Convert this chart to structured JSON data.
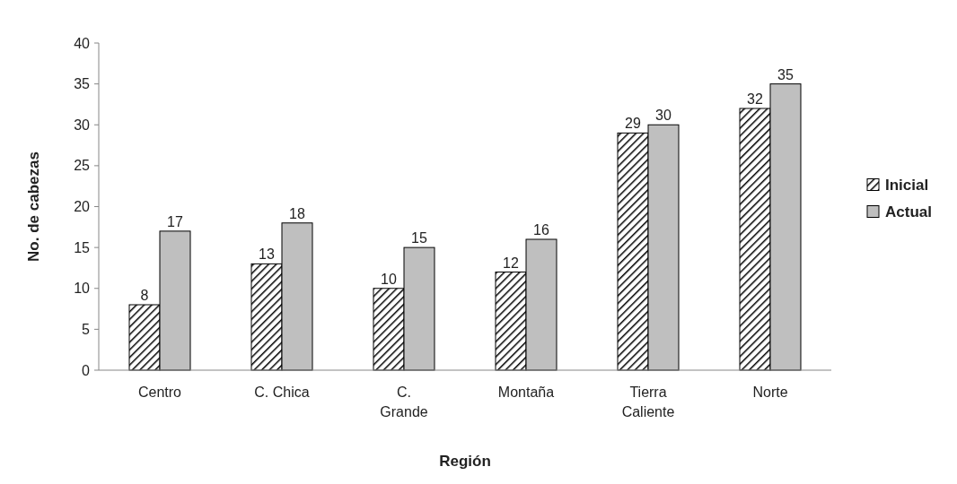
{
  "chart_data": {
    "type": "bar",
    "xlabel": "Región",
    "ylabel": "No. de cabezas",
    "categories": [
      "Centro",
      "C. Chica",
      "C. Grande",
      "Montaña",
      "Tierra Caliente",
      "Norte"
    ],
    "series": [
      {
        "name": "Inicial",
        "color": "#000000",
        "values": [
          8,
          13,
          10,
          12,
          29,
          32
        ]
      },
      {
        "name": "Actual",
        "color": "#bfbfbf",
        "values": [
          17,
          18,
          15,
          16,
          30,
          35
        ]
      }
    ],
    "ylim": [
      0,
      40
    ],
    "yticks": [
      0,
      5,
      10,
      15,
      20,
      25,
      30,
      35,
      40
    ],
    "data_labels": true,
    "legend": "right",
    "grid": false
  }
}
